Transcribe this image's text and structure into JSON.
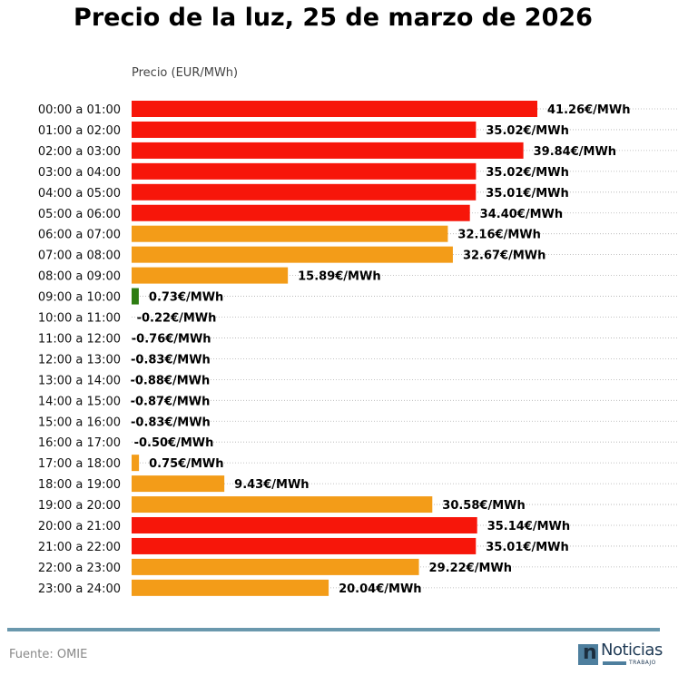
{
  "chart_data": {
    "type": "bar",
    "orientation": "horizontal",
    "title": "Precio de la luz, 25 de marzo de 2026",
    "xlabel": "Precio (EUR/MWh)",
    "ylabel": "",
    "value_suffix": "€/MWh",
    "grid": "dotted horizontal",
    "categories": [
      "00:00 a 01:00",
      "01:00 a 02:00",
      "02:00 a 03:00",
      "03:00 a 04:00",
      "04:00 a 05:00",
      "05:00 a 06:00",
      "06:00 a 07:00",
      "07:00 a 08:00",
      "08:00 a 09:00",
      "09:00 a 10:00",
      "10:00 a 11:00",
      "11:00 a 12:00",
      "12:00 a 13:00",
      "13:00 a 14:00",
      "14:00 a 15:00",
      "15:00 a 16:00",
      "16:00 a 17:00",
      "17:00 a 18:00",
      "18:00 a 19:00",
      "19:00 a 20:00",
      "20:00 a 21:00",
      "21:00 a 22:00",
      "22:00 a 23:00",
      "23:00 a 24:00"
    ],
    "values": [
      41.26,
      35.02,
      39.84,
      35.02,
      35.01,
      34.4,
      32.16,
      32.67,
      15.89,
      0.73,
      -0.22,
      -0.76,
      -0.83,
      -0.88,
      -0.87,
      -0.83,
      -0.5,
      0.75,
      9.43,
      30.58,
      35.14,
      35.01,
      29.22,
      20.04
    ],
    "labels": [
      "41.26€/MWh",
      "35.02€/MWh",
      "39.84€/MWh",
      "35.02€/MWh",
      "35.01€/MWh",
      "34.40€/MWh",
      "32.16€/MWh",
      "32.67€/MWh",
      "15.89€/MWh",
      "0.73€/MWh",
      "-0.22€/MWh",
      "-0.76€/MWh",
      "-0.83€/MWh",
      "-0.88€/MWh",
      "-0.87€/MWh",
      "-0.83€/MWh",
      "-0.50€/MWh",
      "0.75€/MWh",
      "9.43€/MWh",
      "30.58€/MWh",
      "35.14€/MWh",
      "35.01€/MWh",
      "29.22€/MWh",
      "20.04€/MWh"
    ],
    "bar_colors": [
      "#f7160a",
      "#f7160a",
      "#f7160a",
      "#f7160a",
      "#f7160a",
      "#f7160a",
      "#f39c18",
      "#f39c18",
      "#f39c18",
      "#2e7d12",
      "#2e7d12",
      "#2e7d12",
      "#2e7d12",
      "#2e7d12",
      "#2e7d12",
      "#2e7d12",
      "#2e7d12",
      "#f39c18",
      "#f39c18",
      "#f39c18",
      "#f7160a",
      "#f7160a",
      "#f39c18",
      "#f39c18"
    ],
    "xlim": [
      0,
      41.26
    ]
  },
  "footer": {
    "source": "Fuente: OMIE",
    "logo_letter": "n",
    "logo_word": "Noticias",
    "logo_sub": "TRABAJO"
  },
  "colors": {
    "rule": "#6a98ad",
    "grid": "#b0b0b0"
  }
}
